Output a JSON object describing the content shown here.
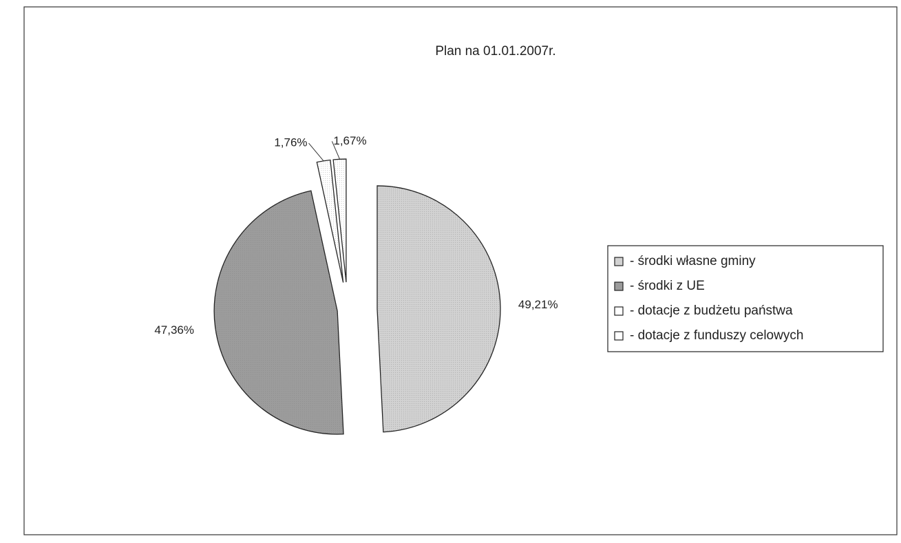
{
  "chart_data": {
    "type": "pie",
    "title": "Plan na 01.01.2007r.",
    "categories": [
      "- środki własne gminy",
      "- środki z UE",
      "- dotacje z budżetu państwa",
      "- dotacje z funduszy celowych"
    ],
    "values": [
      49.21,
      47.36,
      1.76,
      1.67
    ],
    "value_labels": [
      "49,21%",
      "47,36%",
      "1,76%",
      "1,67%"
    ],
    "colors": [
      "#d2d2d2",
      "#9c9c9c",
      "#ffffff",
      "#ffffff"
    ],
    "legend": "right"
  }
}
